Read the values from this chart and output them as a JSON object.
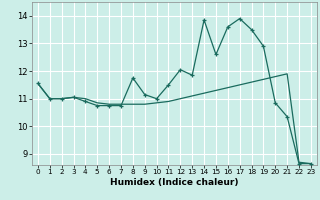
{
  "xlabel": "Humidex (Indice chaleur)",
  "xlim": [
    -0.5,
    23.5
  ],
  "ylim": [
    8.6,
    14.5
  ],
  "yticks": [
    9,
    10,
    11,
    12,
    13,
    14
  ],
  "xticks": [
    0,
    1,
    2,
    3,
    4,
    5,
    6,
    7,
    8,
    9,
    10,
    11,
    12,
    13,
    14,
    15,
    16,
    17,
    18,
    19,
    20,
    21,
    22,
    23
  ],
  "bg_color": "#cceee8",
  "grid_color": "#ffffff",
  "line_color": "#1a6b5e",
  "line1_x": [
    0,
    1,
    2,
    3,
    4,
    5,
    6,
    7,
    8,
    9,
    10,
    11,
    12,
    13,
    14,
    15,
    16,
    17,
    18,
    19,
    20,
    21,
    22,
    23
  ],
  "line1_y": [
    11.55,
    11.0,
    11.0,
    11.05,
    10.9,
    10.75,
    10.75,
    10.75,
    11.75,
    11.15,
    11.0,
    11.5,
    12.05,
    11.85,
    13.85,
    12.6,
    13.6,
    13.9,
    13.5,
    12.9,
    10.85,
    10.35,
    8.65,
    8.65
  ],
  "line2_x": [
    0,
    1,
    2,
    3,
    4,
    5,
    6,
    7,
    8,
    9,
    10,
    11,
    12,
    13,
    14,
    15,
    16,
    17,
    18,
    19,
    20,
    21,
    22,
    23
  ],
  "line2_y": [
    11.55,
    11.0,
    11.0,
    11.05,
    11.0,
    10.85,
    10.8,
    10.8,
    10.8,
    10.8,
    10.85,
    10.9,
    11.0,
    11.1,
    11.2,
    11.3,
    11.4,
    11.5,
    11.6,
    11.7,
    11.8,
    11.9,
    8.7,
    8.65
  ]
}
